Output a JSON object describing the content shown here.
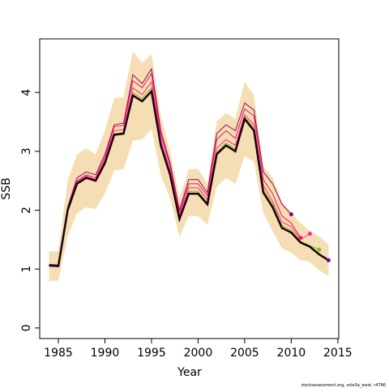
{
  "chart_data": {
    "type": "line",
    "x_label": "Year",
    "y_label": "SSB",
    "footnote": "stockassessment.org, sole3a_west, r4786",
    "x": [
      1984,
      1985,
      1986,
      1987,
      1988,
      1989,
      1990,
      1991,
      1992,
      1993,
      1994,
      1995,
      1996,
      1997,
      1998,
      1999,
      2000,
      2001,
      2002,
      2003,
      2004,
      2005,
      2006,
      2007,
      2008,
      2009,
      2010,
      2011,
      2012,
      2013,
      2014
    ],
    "band_color": "#F5DEB3",
    "band_upper": [
      1.3,
      1.3,
      2.5,
      2.95,
      3.05,
      2.95,
      3.35,
      3.9,
      3.92,
      4.7,
      4.5,
      4.65,
      3.6,
      3.0,
      2.2,
      2.7,
      2.7,
      2.45,
      3.5,
      3.65,
      3.55,
      4.18,
      3.95,
      2.75,
      2.55,
      2.15,
      1.95,
      1.78,
      1.65,
      1.55,
      1.42
    ],
    "band_lower": [
      0.8,
      0.8,
      1.55,
      1.95,
      2.05,
      2.02,
      2.28,
      2.68,
      2.7,
      3.18,
      3.2,
      3.38,
      2.6,
      2.2,
      1.55,
      1.9,
      1.9,
      1.75,
      2.4,
      2.55,
      2.45,
      2.92,
      2.82,
      1.95,
      1.65,
      1.35,
      1.28,
      1.15,
      1.12,
      0.98,
      0.88
    ],
    "series": [
      {
        "color": "#990066",
        "point_color": "#990066",
        "width": 1,
        "values": [
          1.08,
          1.07,
          2.05,
          2.55,
          2.65,
          2.6,
          2.95,
          3.45,
          3.48,
          4.3,
          4.15,
          4.4,
          3.35,
          2.8,
          2.0,
          2.52,
          2.52,
          2.3,
          3.3,
          3.45,
          3.35,
          3.82,
          3.7,
          2.65,
          2.45,
          2.1,
          1.93,
          null,
          null,
          null,
          null
        ]
      },
      {
        "color": "#E8174A",
        "point_color": "#E8174A",
        "width": 1,
        "values": [
          1.07,
          1.06,
          2.03,
          2.5,
          2.6,
          2.55,
          2.9,
          3.42,
          3.44,
          4.2,
          4.08,
          4.32,
          3.28,
          2.75,
          1.95,
          2.45,
          2.45,
          2.25,
          3.2,
          3.35,
          3.22,
          3.72,
          3.6,
          2.52,
          2.28,
          1.9,
          1.78,
          1.53,
          null,
          null,
          null
        ]
      },
      {
        "color": "#FF2299",
        "point_color": "#FF2299",
        "width": 1,
        "values": [
          1.06,
          1.05,
          2.02,
          2.48,
          2.58,
          2.52,
          2.85,
          3.35,
          3.37,
          4.08,
          3.96,
          4.18,
          3.2,
          2.68,
          1.9,
          2.38,
          2.38,
          2.18,
          3.05,
          3.2,
          3.1,
          3.62,
          3.45,
          2.42,
          2.15,
          1.8,
          1.72,
          1.5,
          1.6,
          null,
          null
        ]
      },
      {
        "color": "#80C000",
        "point_color": "#80C000",
        "width": 1,
        "values": [
          1.06,
          1.05,
          2.01,
          2.46,
          2.56,
          2.51,
          2.82,
          3.3,
          3.32,
          4.0,
          3.9,
          4.08,
          3.14,
          2.63,
          1.87,
          2.32,
          2.32,
          2.13,
          2.98,
          3.14,
          3.04,
          3.58,
          3.4,
          2.35,
          2.1,
          1.74,
          1.66,
          1.47,
          1.4,
          1.33,
          null
        ]
      },
      {
        "color": "#1A0010",
        "point_color": "#8000A0",
        "width": 2.5,
        "values": [
          1.06,
          1.05,
          2.0,
          2.45,
          2.55,
          2.5,
          2.8,
          3.28,
          3.3,
          3.95,
          3.85,
          4.02,
          3.1,
          2.6,
          1.85,
          2.28,
          2.28,
          2.1,
          2.95,
          3.1,
          3.0,
          3.55,
          3.35,
          2.3,
          2.05,
          1.7,
          1.62,
          1.45,
          1.38,
          1.25,
          1.15
        ]
      }
    ],
    "xlim": [
      1983,
      2015.1
    ],
    "xticks": [
      1985,
      1990,
      1995,
      2000,
      2005,
      2010,
      2015
    ],
    "ylim": [
      -0.18,
      4.91
    ],
    "yticks": [
      0,
      1,
      2,
      3,
      4
    ]
  }
}
